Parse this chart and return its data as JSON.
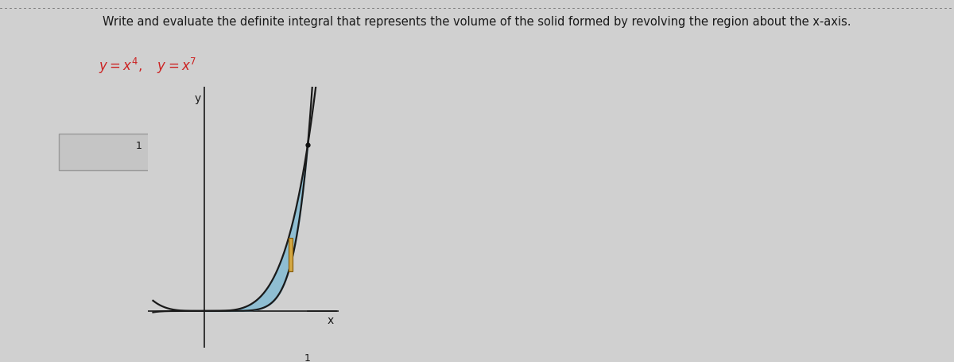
{
  "title": "Write and evaluate the definite integral that represents the volume of the solid formed by revolving the region about the x-axis.",
  "eq1_display": "$y = x^4, \\quad y = x^7$",
  "bg_color": "#d0d0d0",
  "curve_color": "#1a1a1a",
  "fill_color": "#7ab8d4",
  "fill_alpha": 0.75,
  "rect_color": "#d4a843",
  "rect_edge": "#8a6010",
  "answer_box_facecolor": "#c5c5c5",
  "answer_box_edgecolor": "#999999",
  "x_label": "x",
  "y_label": "y",
  "xlim": [
    -0.55,
    1.3
  ],
  "ylim": [
    -0.22,
    1.35
  ],
  "title_fontsize": 10.5,
  "eq_fontsize": 12,
  "axis_label_fontsize": 10,
  "tick_fontsize": 9,
  "dot_color": "#444444",
  "dot_border": "#bbbbbb",
  "dot_line_color": "#888888"
}
